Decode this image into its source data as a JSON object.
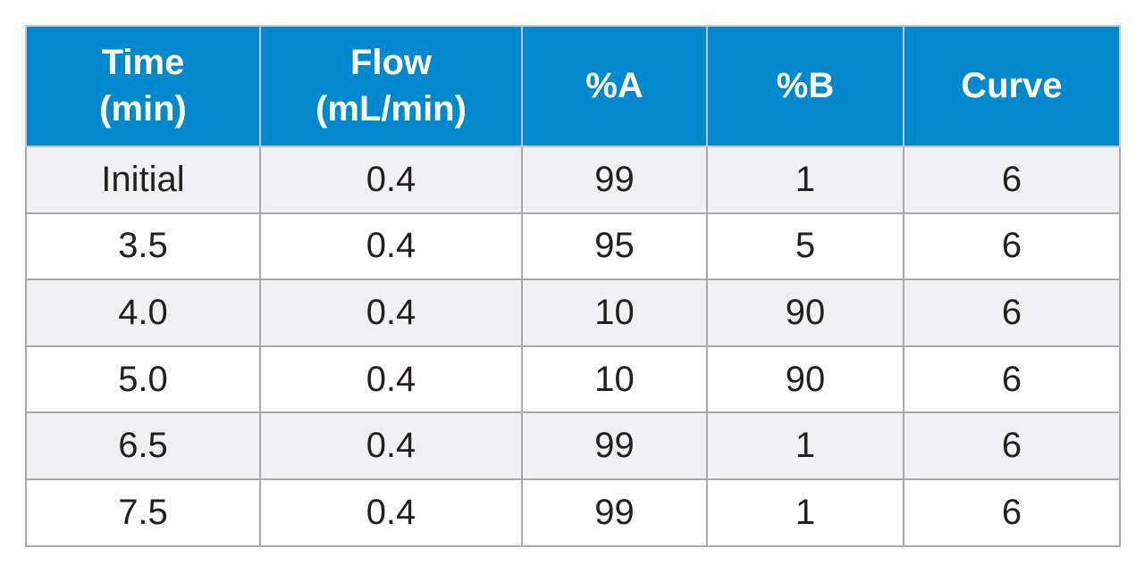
{
  "table": {
    "headers": [
      {
        "line1": "Time",
        "line2": "(min)"
      },
      {
        "line1": "Flow",
        "line2": "(mL/min)"
      },
      {
        "line1": "%A",
        "line2": ""
      },
      {
        "line1": "%B",
        "line2": ""
      },
      {
        "line1": "Curve",
        "line2": ""
      }
    ],
    "rows": [
      [
        "Initial",
        "0.4",
        "99",
        "1",
        "6"
      ],
      [
        "3.5",
        "0.4",
        "95",
        "5",
        "6"
      ],
      [
        "4.0",
        "0.4",
        "10",
        "90",
        "6"
      ],
      [
        "5.0",
        "0.4",
        "10",
        "90",
        "6"
      ],
      [
        "6.5",
        "0.4",
        "99",
        "1",
        "6"
      ],
      [
        "7.5",
        "0.4",
        "99",
        "1",
        "6"
      ]
    ]
  },
  "colors": {
    "header_background": "#0089cf",
    "header_text": "#ffffff",
    "odd_row_background": "#f1f1f3",
    "even_row_background": "#ffffff",
    "border": "#a7a9ac"
  }
}
